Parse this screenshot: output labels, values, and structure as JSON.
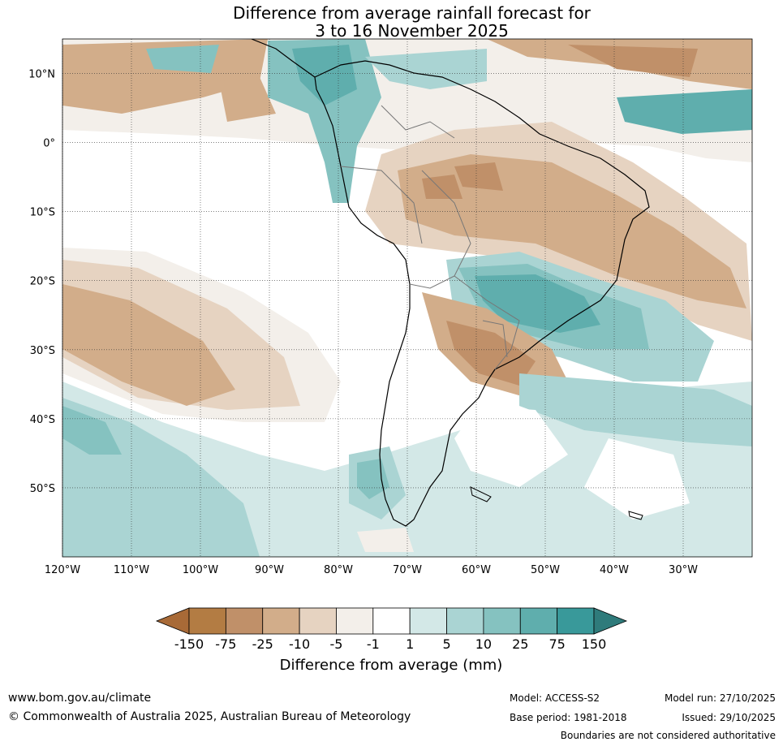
{
  "title": {
    "line1": "Difference from average rainfall forecast for",
    "line2": "3 to 16 November 2025"
  },
  "map": {
    "lat_ticks": [
      "10°N",
      "0°",
      "10°S",
      "20°S",
      "30°S",
      "40°S",
      "50°S"
    ],
    "lon_ticks": [
      "120°W",
      "110°W",
      "100°W",
      "90°W",
      "80°W",
      "70°W",
      "60°W",
      "50°W",
      "40°W",
      "30°W"
    ],
    "extent": {
      "lon_min": -120,
      "lon_max": -20,
      "lat_min": -60,
      "lat_max": 15
    }
  },
  "colorbar": {
    "ticks": [
      "-150",
      "-75",
      "-25",
      "-10",
      "-5",
      "-1",
      "1",
      "5",
      "10",
      "25",
      "75",
      "150"
    ],
    "colors": [
      "#a86a37",
      "#b37c43",
      "#c09069",
      "#d2ad8a",
      "#e6d3c1",
      "#f3efea",
      "#ffffff",
      "#d3e8e7",
      "#aad4d3",
      "#85c2c0",
      "#5faead",
      "#39999a",
      "#2f7b7b"
    ],
    "label": "Difference from average (mm)"
  },
  "footer": {
    "website": "www.bom.gov.au/climate",
    "copyright": "© Commonwealth of Australia 2025, Australian Bureau of Meteorology",
    "model": "Model: ACCESS-S2",
    "model_run": "Model run: 27/10/2025",
    "base_period": "Base period: 1981-2018",
    "issued": "Issued: 29/10/2025",
    "disclaimer": "Boundaries are not considered authoritative"
  }
}
